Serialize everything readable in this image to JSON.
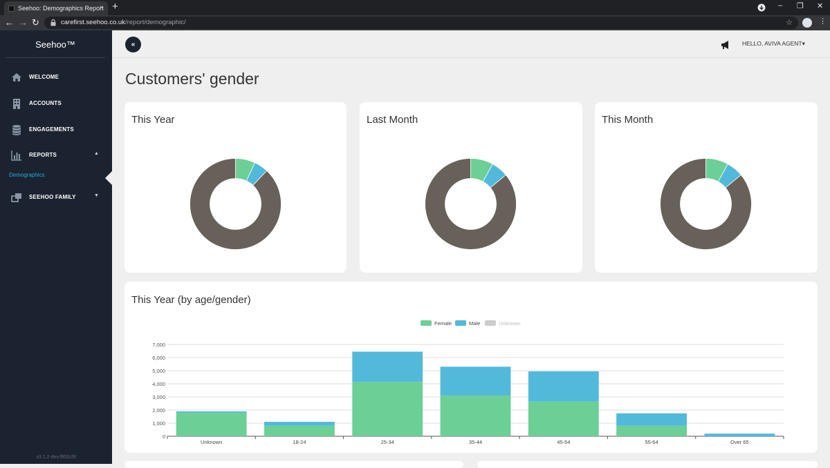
{
  "browser": {
    "tab_title": "Seehoo: Demographics Report",
    "tab_close": "×",
    "new_tab": "+",
    "url_host": "carefirst.seehoo.co.uk",
    "url_path": "/report/demographic/",
    "back": "←",
    "forward": "→",
    "reload": "↻",
    "star": "☆",
    "menu": "⋮",
    "minimize": "–",
    "restore": "❐",
    "close": "✕"
  },
  "sidebar": {
    "brand": "Seehoo™",
    "items": [
      {
        "label": "WELCOME",
        "icon": "home-icon"
      },
      {
        "label": "ACCOUNTS",
        "icon": "building-icon"
      },
      {
        "label": "ENGAGEMENTS",
        "icon": "database-icon"
      },
      {
        "label": "REPORTS",
        "icon": "bar-chart-icon",
        "caret": "▲"
      },
      {
        "label": "SEEHOO FAMILY",
        "icon": "windows-icon",
        "caret": "▼"
      }
    ],
    "sub_item": "Demographics",
    "version": "v3.1.2-dev.f852c5f"
  },
  "topbar": {
    "collapse": "«",
    "greeting": "HELLO, AVIVA AGENT▾"
  },
  "page": {
    "title": "Customers' gender"
  },
  "colors": {
    "female": "#6bcf96",
    "male": "#52b9da",
    "unknown": "#67615a",
    "unknown_legend": "#cccccc"
  },
  "chart_data": [
    {
      "type": "pie",
      "title": "This Year",
      "categories": [
        "Female",
        "Male",
        "Unknown"
      ],
      "values": [
        7,
        5,
        88
      ]
    },
    {
      "type": "pie",
      "title": "Last Month",
      "categories": [
        "Female",
        "Male",
        "Unknown"
      ],
      "values": [
        8,
        6,
        86
      ]
    },
    {
      "type": "pie",
      "title": "This Month",
      "categories": [
        "Female",
        "Male",
        "Unknown"
      ],
      "values": [
        8,
        6,
        86
      ]
    },
    {
      "type": "bar",
      "stacked": true,
      "title": "This Year (by age/gender)",
      "categories": [
        "Unknown",
        "18-24",
        "25-34",
        "35-44",
        "45-54",
        "55-64",
        "Over 65"
      ],
      "series": [
        {
          "name": "Female",
          "values": [
            1800,
            800,
            4150,
            3100,
            2650,
            800,
            0
          ]
        },
        {
          "name": "Male",
          "values": [
            100,
            300,
            2300,
            2200,
            2300,
            950,
            200
          ]
        },
        {
          "name": "Unknown",
          "values": [
            0,
            0,
            0,
            0,
            0,
            0,
            0
          ]
        }
      ],
      "ylim": [
        0,
        7000
      ],
      "yticks": [
        "0",
        "1,000",
        "2,000",
        "3,000",
        "4,000",
        "5,000",
        "6,000",
        "7,000"
      ],
      "legend": "top",
      "grid": true
    }
  ]
}
